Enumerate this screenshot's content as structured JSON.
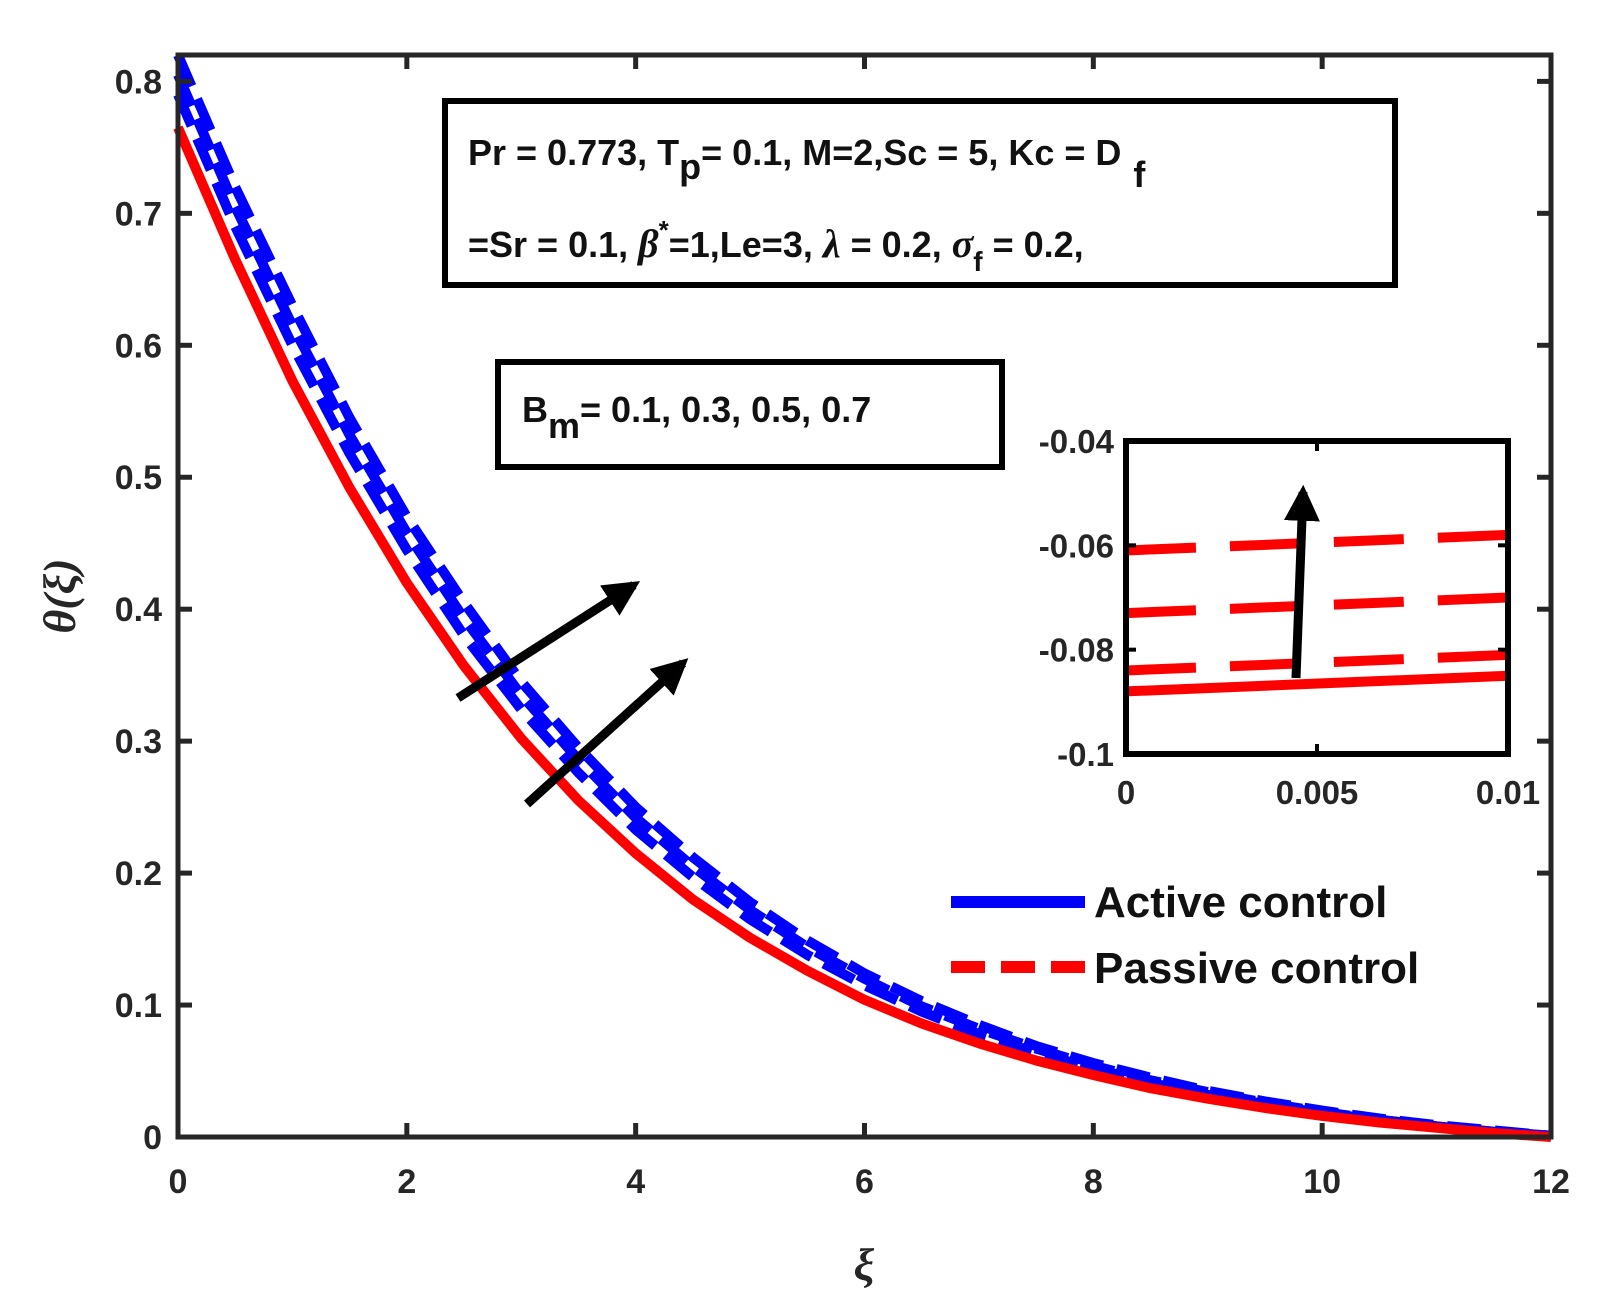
{
  "chart_data": {
    "type": "line",
    "xlabel": "ξ",
    "ylabel": "θ(ξ)",
    "xlim": [
      0,
      12
    ],
    "ylim": [
      0,
      0.82
    ],
    "xticks": [
      "0",
      "2",
      "4",
      "6",
      "8",
      "10",
      "12"
    ],
    "yticks": [
      "0",
      "0.1",
      "0.2",
      "0.3",
      "0.4",
      "0.5",
      "0.6",
      "0.7",
      "0.8"
    ],
    "x": [
      0,
      0.5,
      1,
      1.5,
      2,
      2.5,
      3,
      3.5,
      4,
      4.5,
      5,
      5.5,
      6,
      6.5,
      7,
      7.5,
      8,
      8.5,
      9,
      9.5,
      10,
      10.5,
      11,
      11.5,
      12
    ],
    "series": [
      {
        "name": "Active control",
        "color": "#0000ff",
        "style": "dashed",
        "values": [
          0.82,
          0.72,
          0.63,
          0.545,
          0.47,
          0.405,
          0.345,
          0.295,
          0.25,
          0.212,
          0.178,
          0.149,
          0.124,
          0.103,
          0.085,
          0.069,
          0.056,
          0.045,
          0.035,
          0.027,
          0.02,
          0.014,
          0.009,
          0.005,
          0.001
        ]
      },
      {
        "name": "Active control",
        "color": "#0000ff",
        "style": "dashed",
        "values": [
          0.805,
          0.705,
          0.615,
          0.532,
          0.458,
          0.393,
          0.335,
          0.286,
          0.242,
          0.205,
          0.172,
          0.144,
          0.12,
          0.099,
          0.082,
          0.067,
          0.054,
          0.043,
          0.034,
          0.026,
          0.019,
          0.013,
          0.008,
          0.004,
          0.001
        ]
      },
      {
        "name": "Active control",
        "color": "#0000ff",
        "style": "dashed",
        "values": [
          0.79,
          0.69,
          0.6,
          0.518,
          0.445,
          0.38,
          0.324,
          0.276,
          0.233,
          0.197,
          0.165,
          0.138,
          0.115,
          0.095,
          0.078,
          0.064,
          0.052,
          0.041,
          0.032,
          0.025,
          0.018,
          0.013,
          0.008,
          0.004,
          0.001
        ]
      },
      {
        "name": "Passive control",
        "color": "#ff0000",
        "style": "solid",
        "values": [
          0.765,
          0.665,
          0.573,
          0.492,
          0.42,
          0.357,
          0.302,
          0.255,
          0.215,
          0.18,
          0.151,
          0.126,
          0.104,
          0.086,
          0.071,
          0.058,
          0.047,
          0.037,
          0.029,
          0.022,
          0.016,
          0.011,
          0.007,
          0.003,
          0.0
        ]
      }
    ],
    "legend": [
      "Active control",
      "Passive control"
    ],
    "legend_position": "bottom-right",
    "parameter_box": {
      "line1": {
        "pr": "Pr = 0.773, T",
        "tp_sub": "p",
        "rest": "= 0.1, M=2,Sc = 5, Kc = D",
        "df_sub": "f"
      },
      "line2": {
        "sr": "=Sr = 0.1, ",
        "beta": "β",
        "beta_sup": "*",
        "le": "=1,Le=3, ",
        "lambda": "λ",
        "lam_val": " = 0.2, ",
        "sigma": "σ",
        "sigma_sub": "f",
        "sig_val": " = 0.2,"
      }
    },
    "bm_box": {
      "b": "B",
      "sub": "m",
      "values": "= 0.1, 0.3, 0.5, 0.7"
    },
    "inset": {
      "xlim": [
        0,
        0.01
      ],
      "ylim": [
        -0.1,
        -0.04
      ],
      "xticks": [
        "0",
        "0.005",
        "0.01"
      ],
      "yticks": [
        "-0.04",
        "-0.06",
        "-0.08",
        "-0.1"
      ],
      "x": [
        0,
        0.01
      ],
      "series": [
        {
          "name": "Passive control",
          "color": "#ff0000",
          "style": "dashed",
          "values": [
            -0.061,
            -0.058
          ]
        },
        {
          "name": "Passive control",
          "color": "#ff0000",
          "style": "dashed",
          "values": [
            -0.073,
            -0.07
          ]
        },
        {
          "name": "Passive control",
          "color": "#ff0000",
          "style": "dashed",
          "values": [
            -0.084,
            -0.081
          ]
        },
        {
          "name": "Passive control",
          "color": "#ff0000",
          "style": "solid",
          "values": [
            -0.088,
            -0.085
          ]
        }
      ]
    }
  }
}
